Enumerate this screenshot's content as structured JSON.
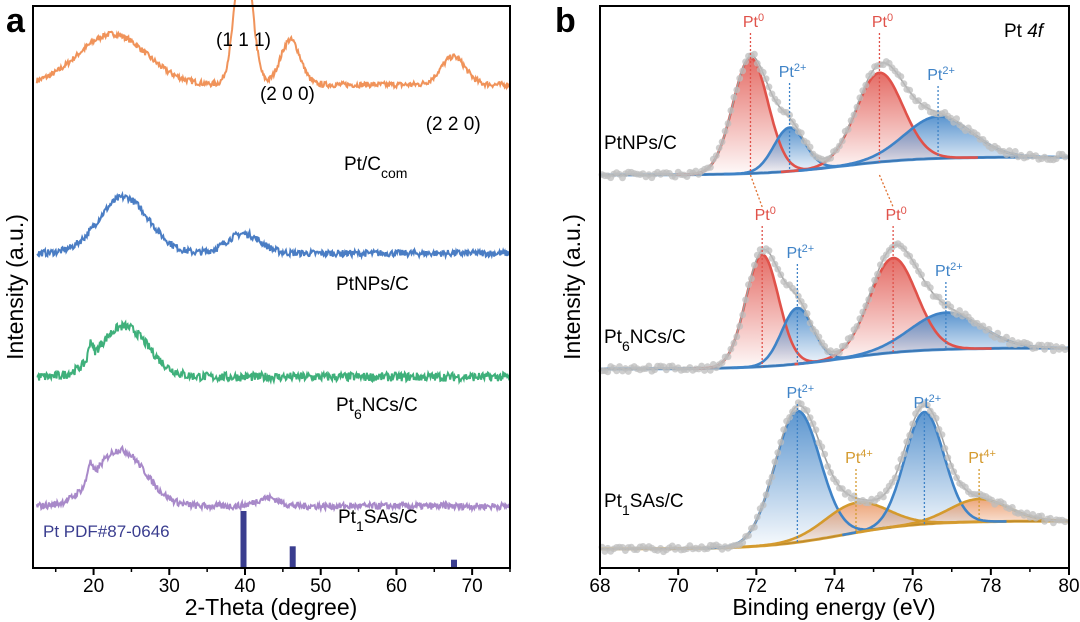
{
  "chart_data": [
    {
      "panel": "a",
      "type": "line",
      "xlabel": "2-Theta (degree)",
      "ylabel": "Intensity (a.u.)",
      "xlim": [
        12,
        75
      ],
      "xticks": [
        20,
        30,
        40,
        50,
        60,
        70
      ],
      "series": [
        {
          "name": "Pt/Ccom",
          "base": "Pt/C",
          "sub": "com",
          "color": "#f0935a",
          "offset": 0.86,
          "noise": 0.005,
          "peaks": [
            [
              22.5,
              0.09,
              4.5
            ],
            [
              39.8,
              0.25,
              1.1
            ],
            [
              46.0,
              0.08,
              1.3
            ],
            [
              67.5,
              0.05,
              1.6
            ]
          ]
        },
        {
          "name": "PtNPs/C",
          "base": "PtNPs/C",
          "sub": "",
          "color": "#4a7dc4",
          "offset": 0.56,
          "noise": 0.006,
          "peaks": [
            [
              24.0,
              0.1,
              3.3
            ],
            [
              39.8,
              0.035,
              2.2
            ]
          ]
        },
        {
          "name": "Pt6NCs/C",
          "base": "Pt",
          "sub": "6",
          "tail": "NCs/C",
          "color": "#3fb07b",
          "offset": 0.34,
          "noise": 0.008,
          "peaks": [
            [
              24.0,
              0.09,
              3.2
            ],
            [
              19.6,
              0.03,
              0.25
            ]
          ]
        },
        {
          "name": "Pt1SAs/C",
          "base": "Pt",
          "sub": "1",
          "tail": "SAs/C",
          "color": "#a889c9",
          "offset": 0.11,
          "noise": 0.006,
          "peaks": [
            [
              23.5,
              0.1,
              3.3
            ],
            [
              19.5,
              0.03,
              0.3
            ],
            [
              43.0,
              0.015,
              1.5
            ]
          ]
        }
      ],
      "peak_labels": [
        {
          "text": "(1 1 1)",
          "x": 39.8
        },
        {
          "text": "(2 0 0)",
          "x": 46.0
        },
        {
          "text": "(2 2 0)",
          "x": 67.5
        }
      ],
      "reference": {
        "label": "Pt PDF#87-0646",
        "color": "#3a3d8f",
        "sticks": [
          [
            39.8,
            1.0
          ],
          [
            46.3,
            0.37
          ],
          [
            67.6,
            0.13
          ]
        ]
      }
    },
    {
      "panel": "b",
      "type": "line",
      "xlabel": "Binding energy (eV)",
      "ylabel": "Intensity (a.u.)",
      "annotation": "Pt 4f",
      "xlim": [
        68,
        80
      ],
      "xticks": [
        68,
        70,
        72,
        74,
        76,
        78,
        80
      ],
      "colors": {
        "pt0": "#e0524a",
        "pt2": "#3f83c7",
        "pt4": "#d49a2e",
        "data": "#bdbdbd",
        "envelope": "#a0a0a0"
      },
      "samples": [
        {
          "name": "PtNPs/C",
          "base": "PtNPs/C",
          "sub": "",
          "tail": "",
          "components": [
            {
              "type": "Pt0",
              "center": 71.85,
              "height": 0.66,
              "sigma": 0.45
            },
            {
              "type": "Pt2+",
              "center": 72.85,
              "height": 0.25,
              "sigma": 0.4
            },
            {
              "type": "Pt0",
              "center": 75.15,
              "height": 0.51,
              "sigma": 0.6
            },
            {
              "type": "Pt2+",
              "center": 76.65,
              "height": 0.24,
              "sigma": 0.85
            }
          ]
        },
        {
          "name": "Pt6NCs/C",
          "base": "Pt",
          "sub": "6",
          "tail": "NCs/C",
          "components": [
            {
              "type": "Pt0",
              "center": 72.15,
              "height": 0.64,
              "sigma": 0.42
            },
            {
              "type": "Pt2+",
              "center": 73.05,
              "height": 0.32,
              "sigma": 0.4
            },
            {
              "type": "Pt0",
              "center": 75.5,
              "height": 0.54,
              "sigma": 0.6
            },
            {
              "type": "Pt2+",
              "center": 76.85,
              "height": 0.21,
              "sigma": 0.9
            }
          ]
        },
        {
          "name": "Pt1SAs/C",
          "base": "Pt",
          "sub": "1",
          "tail": "SAs/C",
          "components": [
            {
              "type": "Pt2+",
              "center": 73.05,
              "height": 0.75,
              "sigma": 0.58
            },
            {
              "type": "Pt4+",
              "center": 74.55,
              "height": 0.17,
              "sigma": 0.8
            },
            {
              "type": "Pt2+",
              "center": 76.3,
              "height": 0.64,
              "sigma": 0.5
            },
            {
              "type": "Pt4+",
              "center": 77.7,
              "height": 0.13,
              "sigma": 0.75
            }
          ]
        }
      ],
      "component_labels": [
        {
          "sample": 0,
          "base": "Pt",
          "sup": "0",
          "type": "Pt0",
          "x": 71.85,
          "dotted": true
        },
        {
          "sample": 0,
          "base": "Pt",
          "sup": "2+",
          "type": "Pt2+",
          "x": 72.85,
          "dotted": true
        },
        {
          "sample": 0,
          "base": "Pt",
          "sup": "0",
          "type": "Pt0",
          "x": 75.15,
          "dotted": true
        },
        {
          "sample": 0,
          "base": "Pt",
          "sup": "2+",
          "type": "Pt2+",
          "x": 76.65,
          "dotted": true
        },
        {
          "sample": 1,
          "base": "Pt",
          "sup": "0",
          "type": "Pt0",
          "x": 72.15,
          "dotted": true
        },
        {
          "sample": 1,
          "base": "Pt",
          "sup": "2+",
          "type": "Pt2+",
          "x": 73.05,
          "dotted": true
        },
        {
          "sample": 1,
          "base": "Pt",
          "sup": "0",
          "type": "Pt0",
          "x": 75.5,
          "dotted": true
        },
        {
          "sample": 1,
          "base": "Pt",
          "sup": "2+",
          "type": "Pt2+",
          "x": 76.85,
          "dotted": true
        },
        {
          "sample": 2,
          "base": "Pt",
          "sup": "2+",
          "type": "Pt2+",
          "x": 73.05,
          "dotted": true
        },
        {
          "sample": 2,
          "base": "Pt",
          "sup": "4+",
          "type": "Pt4+",
          "x": 74.55,
          "dotted": true
        },
        {
          "sample": 2,
          "base": "Pt",
          "sup": "2+",
          "type": "Pt2+",
          "x": 76.3,
          "dotted": true
        },
        {
          "sample": 2,
          "base": "Pt",
          "sup": "4+",
          "type": "Pt4+",
          "x": 77.7,
          "dotted": true
        }
      ]
    }
  ]
}
